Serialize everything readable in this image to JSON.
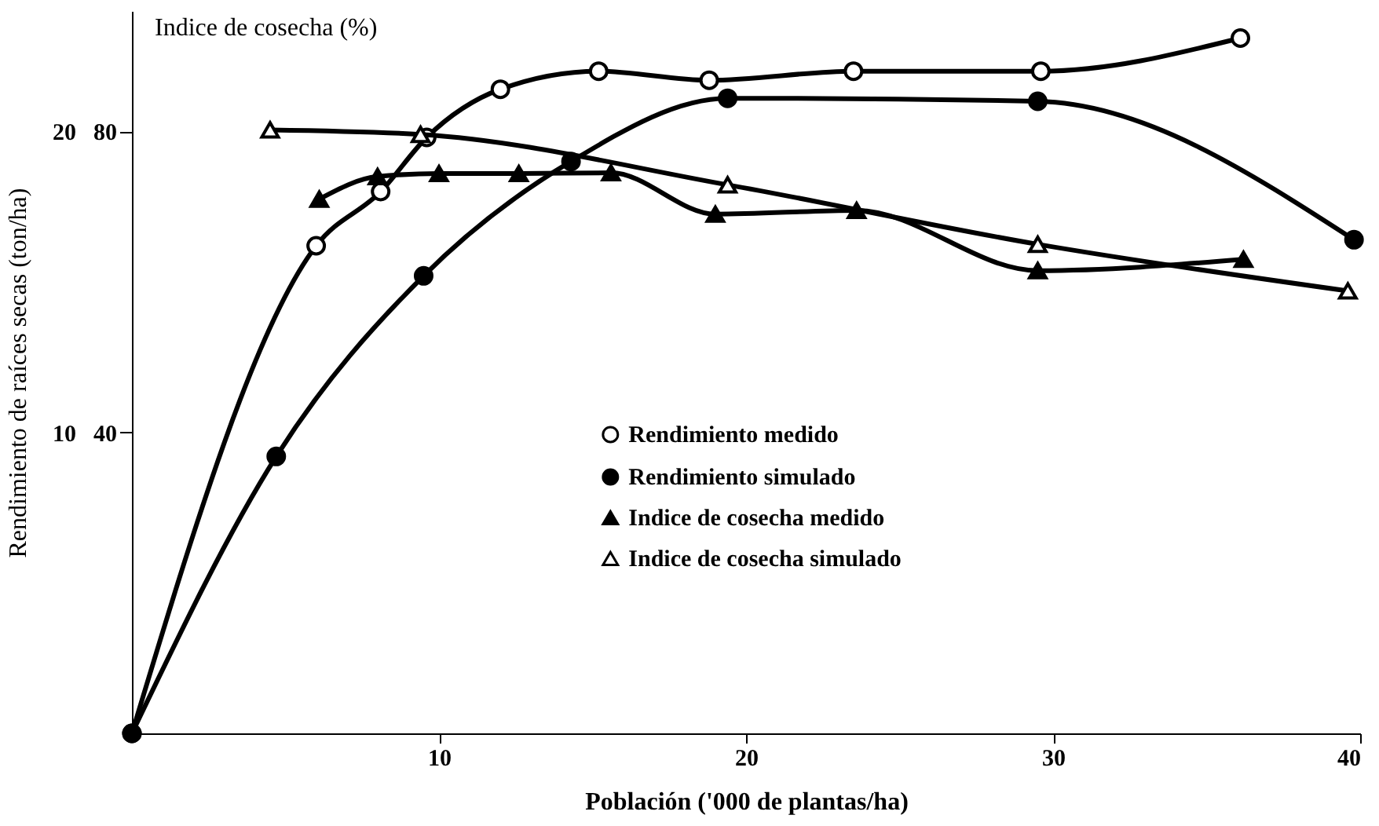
{
  "chart_data": {
    "type": "line",
    "xlabel": "Población ('000 de plantas/ha)",
    "ylabel": "Rendimiento de raíces secas (ton/ha)",
    "y2label": "Indice de cosecha (%)",
    "xlim": [
      0,
      40
    ],
    "xticks": [
      10,
      20,
      30,
      40
    ],
    "ylim": [
      0,
      24
    ],
    "yticks": [
      10,
      20
    ],
    "y2lim": [
      0,
      96
    ],
    "y2ticks": [
      40,
      80
    ],
    "grid": false,
    "legend": "right",
    "series": [
      {
        "name": "Rendimiento medido",
        "color": "#000000",
        "marker": "circle",
        "x": [
          0,
          6.0,
          8.1,
          9.6,
          12.0,
          15.2,
          18.8,
          23.5,
          29.6,
          36.1
        ],
        "values": [
          0,
          16.2,
          18.0,
          19.8,
          21.4,
          22.0,
          21.7,
          22.0,
          22.0,
          23.1
        ]
      },
      {
        "name": "Rendimiento simulado",
        "color": "#000000",
        "marker": "circle",
        "x": [
          0,
          4.7,
          9.5,
          14.3,
          19.4,
          29.5,
          39.8
        ],
        "values": [
          0,
          9.2,
          15.2,
          19.0,
          21.1,
          21.0,
          16.4
        ]
      },
      {
        "name": "Indice de cosecha medido",
        "color": "#000000",
        "marker": "triangle",
        "axis": "y2",
        "x": [
          6.1,
          8.0,
          10.0,
          12.6,
          15.6,
          19.0,
          23.6,
          29.5,
          36.2
        ],
        "values": [
          71,
          74,
          74.4,
          74.4,
          74.5,
          69,
          69.5,
          61.5,
          63
        ]
      },
      {
        "name": "Indice de cosecha simulado",
        "color": "#000000",
        "marker": "triangle",
        "axis": "y2",
        "x": [
          4.5,
          9.4,
          19.4,
          29.5,
          39.6
        ],
        "values": [
          80.2,
          79.6,
          72.9,
          65.0,
          58.8
        ]
      }
    ]
  }
}
